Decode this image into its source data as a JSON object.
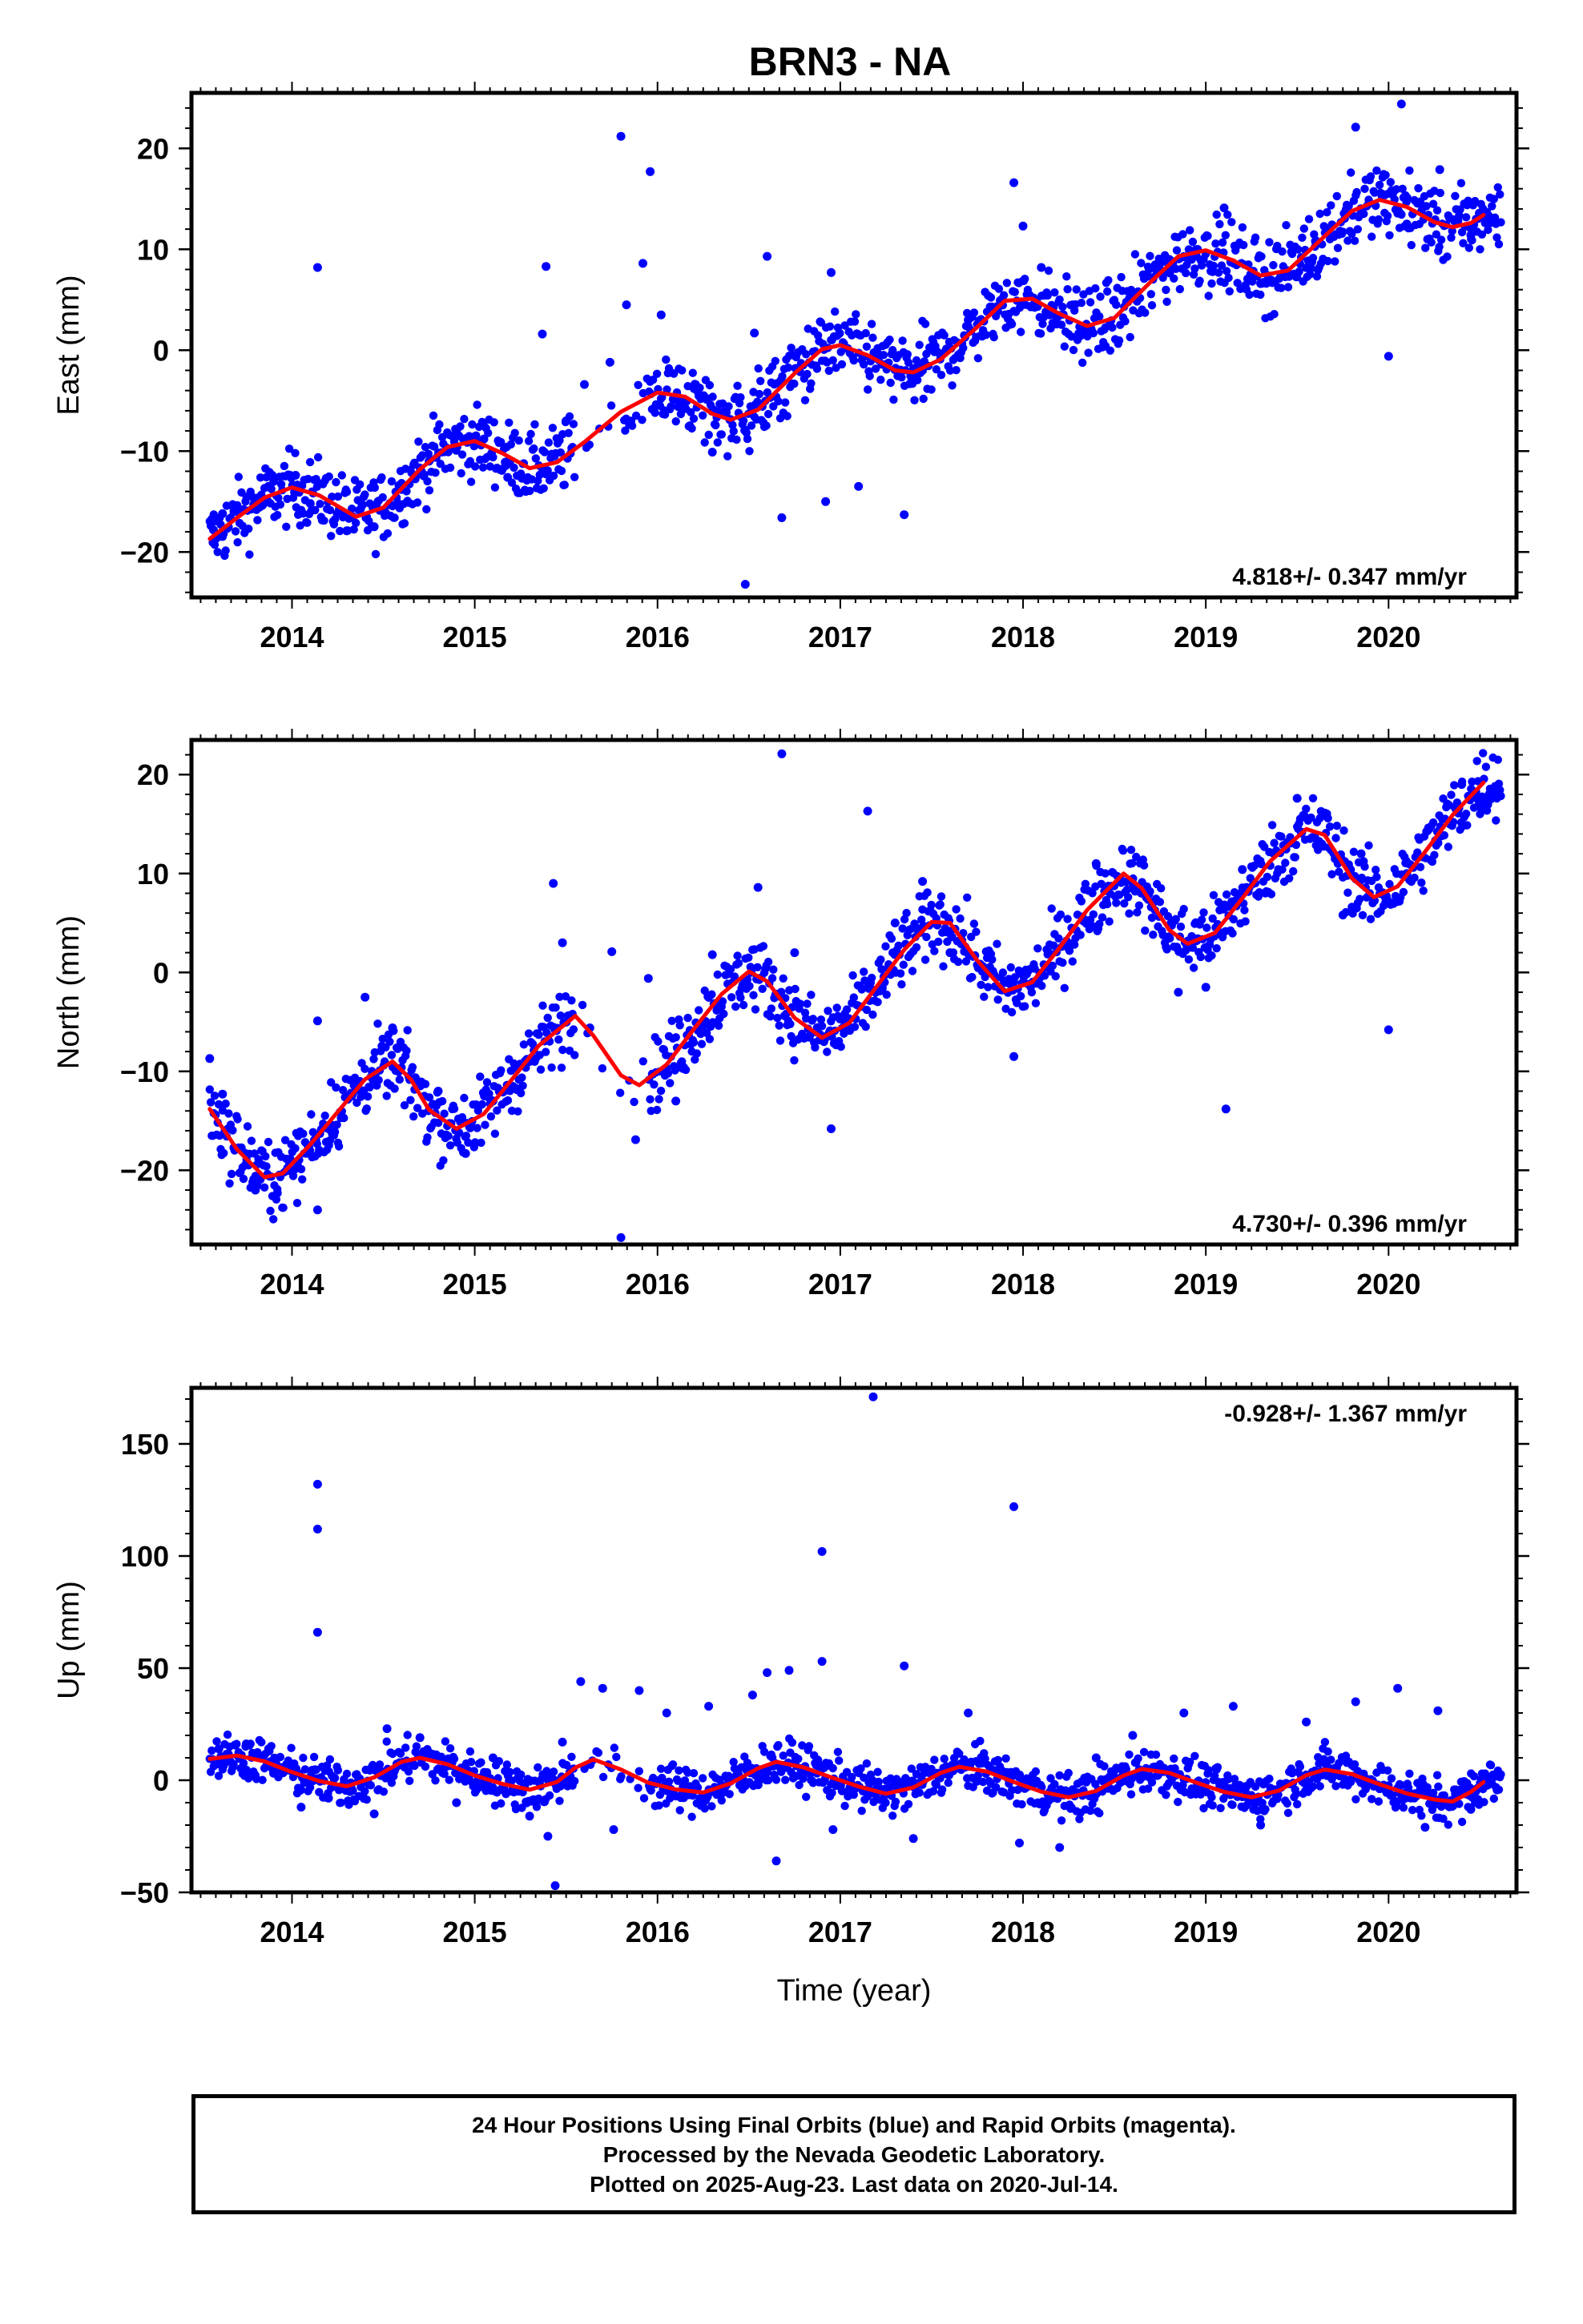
{
  "title": "BRN3 - NA",
  "colors": {
    "points": "#0000ff",
    "fit": "#ff0000",
    "axes": "#000000",
    "background": "#ffffff"
  },
  "footer": {
    "line1": "24 Hour Positions Using Final Orbits (blue) and Rapid Orbits (magenta).",
    "line2": "Processed by the Nevada Geodetic Laboratory.",
    "line3": "Plotted on 2025-Aug-23. Last data on 2020-Jul-14."
  },
  "chart_data": [
    {
      "type": "scatter",
      "id": "east",
      "ylabel": "East (mm)",
      "xlabel": "",
      "xlim": [
        2013.45,
        2020.7
      ],
      "ylim": [
        -24.5,
        25.5
      ],
      "x_ticks": [
        2014,
        2015,
        2016,
        2017,
        2018,
        2019,
        2020
      ],
      "y_ticks": [
        -20,
        -10,
        0,
        10,
        20
      ],
      "y_tick_labels": [
        "−20",
        "−10",
        "0",
        "10",
        "20"
      ],
      "annotation": "4.818+/- 0.347 mm/yr",
      "annotation_position": "bottom-right",
      "fit": [
        [
          2013.55,
          -18.7
        ],
        [
          2013.7,
          -16.6
        ],
        [
          2013.85,
          -14.6
        ],
        [
          2014.0,
          -13.6
        ],
        [
          2014.15,
          -14.4
        ],
        [
          2014.35,
          -16.5
        ],
        [
          2014.5,
          -15.6
        ],
        [
          2014.7,
          -11.8
        ],
        [
          2014.85,
          -9.6
        ],
        [
          2015.0,
          -9.0
        ],
        [
          2015.15,
          -10.2
        ],
        [
          2015.3,
          -11.7
        ],
        [
          2015.45,
          -11.1
        ],
        [
          2015.6,
          -9.1
        ],
        [
          2015.8,
          -6.1
        ],
        [
          2016.0,
          -4.2
        ],
        [
          2016.15,
          -4.6
        ],
        [
          2016.3,
          -6.3
        ],
        [
          2016.4,
          -6.9
        ],
        [
          2016.55,
          -5.9
        ],
        [
          2016.75,
          -2.3
        ],
        [
          2016.9,
          0.1
        ],
        [
          2017.0,
          0.5
        ],
        [
          2017.15,
          -0.5
        ],
        [
          2017.3,
          -2.0
        ],
        [
          2017.4,
          -2.2
        ],
        [
          2017.55,
          -0.9
        ],
        [
          2017.75,
          2.3
        ],
        [
          2017.9,
          4.9
        ],
        [
          2018.05,
          5.1
        ],
        [
          2018.2,
          3.6
        ],
        [
          2018.35,
          2.4
        ],
        [
          2018.5,
          3.2
        ],
        [
          2018.7,
          6.8
        ],
        [
          2018.85,
          9.3
        ],
        [
          2019.0,
          9.9
        ],
        [
          2019.15,
          8.9
        ],
        [
          2019.3,
          7.4
        ],
        [
          2019.45,
          7.9
        ],
        [
          2019.65,
          11.3
        ],
        [
          2019.8,
          13.8
        ],
        [
          2019.95,
          14.9
        ],
        [
          2020.1,
          14.2
        ],
        [
          2020.25,
          12.7
        ],
        [
          2020.35,
          12.2
        ],
        [
          2020.45,
          12.6
        ],
        [
          2020.52,
          13.4
        ]
      ],
      "points": [
        [
          2013.57,
          -17.8
        ],
        [
          2013.62,
          -16.2
        ],
        [
          2013.7,
          -15.4
        ],
        [
          2013.8,
          -14.9
        ],
        [
          2013.9,
          -13.0
        ],
        [
          2014.02,
          -12.4
        ],
        [
          2014.14,
          8.2
        ],
        [
          2014.1,
          -15.2
        ],
        [
          2014.3,
          -17.9
        ],
        [
          2014.45,
          -17.5
        ],
        [
          2014.6,
          -13.8
        ],
        [
          2014.75,
          -11.0
        ],
        [
          2014.9,
          -8.0
        ],
        [
          2015.05,
          -8.8
        ],
        [
          2015.18,
          -12.6
        ],
        [
          2015.37,
          1.6
        ],
        [
          2015.39,
          8.3
        ],
        [
          2015.5,
          -7.0
        ],
        [
          2015.6,
          -3.4
        ],
        [
          2015.74,
          -1.2
        ],
        [
          2015.8,
          21.2
        ],
        [
          2015.83,
          4.5
        ],
        [
          2015.92,
          8.6
        ],
        [
          2015.96,
          17.7
        ],
        [
          2016.02,
          3.5
        ],
        [
          2016.2,
          -3.8
        ],
        [
          2016.3,
          -10.1
        ],
        [
          2016.48,
          -23.2
        ],
        [
          2016.53,
          1.7
        ],
        [
          2016.6,
          9.3
        ],
        [
          2016.68,
          -16.6
        ],
        [
          2016.92,
          -15.0
        ],
        [
          2016.95,
          7.7
        ],
        [
          2017.1,
          -13.5
        ],
        [
          2017.35,
          -16.3
        ],
        [
          2017.45,
          -2.0
        ],
        [
          2017.7,
          3.0
        ],
        [
          2017.95,
          16.6
        ],
        [
          2018.0,
          12.3
        ],
        [
          2018.1,
          8.2
        ],
        [
          2018.45,
          0.4
        ],
        [
          2018.8,
          9.0
        ],
        [
          2019.1,
          14.1
        ],
        [
          2019.3,
          6.6
        ],
        [
          2019.6,
          10.8
        ],
        [
          2019.82,
          22.1
        ],
        [
          2019.98,
          15.4
        ],
        [
          2020.0,
          -0.6
        ],
        [
          2020.07,
          24.4
        ],
        [
          2020.1,
          12.5
        ],
        [
          2020.28,
          17.9
        ],
        [
          2020.45,
          11.4
        ]
      ]
    },
    {
      "type": "scatter",
      "id": "north",
      "ylabel": "North (mm)",
      "xlabel": "",
      "xlim": [
        2013.45,
        2020.7
      ],
      "ylim": [
        -27.5,
        23.5
      ],
      "x_ticks": [
        2014,
        2015,
        2016,
        2017,
        2018,
        2019,
        2020
      ],
      "y_ticks": [
        -20,
        -10,
        0,
        10,
        20
      ],
      "y_tick_labels": [
        "−20",
        "−10",
        "0",
        "10",
        "20"
      ],
      "annotation": "4.730+/- 0.396 mm/yr",
      "annotation_position": "bottom-right",
      "fit": [
        [
          2013.55,
          -13.8
        ],
        [
          2013.7,
          -17.9
        ],
        [
          2013.85,
          -20.7
        ],
        [
          2013.95,
          -20.3
        ],
        [
          2014.1,
          -17.4
        ],
        [
          2014.25,
          -14.1
        ],
        [
          2014.4,
          -10.8
        ],
        [
          2014.55,
          -9.0
        ],
        [
          2014.65,
          -10.8
        ],
        [
          2014.75,
          -13.9
        ],
        [
          2014.9,
          -15.8
        ],
        [
          2015.05,
          -14.3
        ],
        [
          2015.2,
          -10.9
        ],
        [
          2015.35,
          -7.4
        ],
        [
          2015.55,
          -4.4
        ],
        [
          2015.65,
          -6.4
        ],
        [
          2015.8,
          -10.4
        ],
        [
          2015.9,
          -11.4
        ],
        [
          2016.05,
          -9.3
        ],
        [
          2016.2,
          -5.7
        ],
        [
          2016.35,
          -2.2
        ],
        [
          2016.5,
          0.1
        ],
        [
          2016.6,
          -0.9
        ],
        [
          2016.75,
          -4.6
        ],
        [
          2016.9,
          -6.6
        ],
        [
          2017.05,
          -5.1
        ],
        [
          2017.2,
          -1.4
        ],
        [
          2017.35,
          2.3
        ],
        [
          2017.5,
          5.1
        ],
        [
          2017.6,
          5.0
        ],
        [
          2017.75,
          1.2
        ],
        [
          2017.9,
          -1.9
        ],
        [
          2018.05,
          -1.0
        ],
        [
          2018.2,
          2.5
        ],
        [
          2018.35,
          6.3
        ],
        [
          2018.55,
          10.0
        ],
        [
          2018.65,
          8.5
        ],
        [
          2018.8,
          4.3
        ],
        [
          2018.9,
          2.9
        ],
        [
          2019.05,
          4.0
        ],
        [
          2019.2,
          7.5
        ],
        [
          2019.35,
          11.2
        ],
        [
          2019.55,
          14.5
        ],
        [
          2019.65,
          13.9
        ],
        [
          2019.8,
          9.5
        ],
        [
          2019.92,
          7.6
        ],
        [
          2020.05,
          8.7
        ],
        [
          2020.2,
          12.2
        ],
        [
          2020.35,
          15.9
        ],
        [
          2020.52,
          19.2
        ]
      ],
      "points": [
        [
          2013.55,
          -8.7
        ],
        [
          2013.62,
          -12.3
        ],
        [
          2013.8,
          -22.0
        ],
        [
          2013.92,
          -22.3
        ],
        [
          2014.03,
          -19.5
        ],
        [
          2014.14,
          -24.0
        ],
        [
          2014.14,
          -4.9
        ],
        [
          2014.4,
          -2.5
        ],
        [
          2014.55,
          -5.6
        ],
        [
          2014.8,
          -12.0
        ],
        [
          2014.95,
          -18.3
        ],
        [
          2015.1,
          -13.0
        ],
        [
          2015.3,
          -9.0
        ],
        [
          2015.43,
          9.0
        ],
        [
          2015.48,
          3.0
        ],
        [
          2015.63,
          -5.6
        ],
        [
          2015.75,
          2.1
        ],
        [
          2015.8,
          -26.8
        ],
        [
          2015.88,
          -16.9
        ],
        [
          2015.95,
          -0.6
        ],
        [
          2016.1,
          -13.0
        ],
        [
          2016.3,
          1.8
        ],
        [
          2016.55,
          8.6
        ],
        [
          2016.68,
          22.1
        ],
        [
          2016.75,
          2.0
        ],
        [
          2016.95,
          -15.8
        ],
        [
          2017.15,
          16.3
        ],
        [
          2017.3,
          5.0
        ],
        [
          2017.45,
          9.2
        ],
        [
          2017.6,
          2.0
        ],
        [
          2017.95,
          -8.5
        ],
        [
          2018.4,
          11.0
        ],
        [
          2018.6,
          9.0
        ],
        [
          2018.85,
          -2.0
        ],
        [
          2019.0,
          -1.5
        ],
        [
          2019.11,
          -13.8
        ],
        [
          2019.2,
          10.4
        ],
        [
          2019.5,
          17.6
        ],
        [
          2019.75,
          5.8
        ],
        [
          2019.85,
          12.0
        ],
        [
          2020.0,
          -5.8
        ],
        [
          2020.1,
          10.0
        ],
        [
          2020.4,
          19.0
        ],
        [
          2020.5,
          17.0
        ]
      ]
    },
    {
      "type": "scatter",
      "id": "up",
      "ylabel": "Up (mm)",
      "xlabel": "Time (year)",
      "xlim": [
        2013.45,
        2020.7
      ],
      "ylim": [
        -50,
        175
      ],
      "x_ticks": [
        2014,
        2015,
        2016,
        2017,
        2018,
        2019,
        2020
      ],
      "y_ticks": [
        -50,
        0,
        50,
        100,
        150
      ],
      "y_tick_labels": [
        "−50",
        "0",
        "50",
        "100",
        "150"
      ],
      "annotation": "-0.928+/- 1.367 mm/yr",
      "annotation_position": "top-right",
      "fit": [
        [
          2013.55,
          9.5
        ],
        [
          2013.7,
          11.0
        ],
        [
          2013.85,
          8.4
        ],
        [
          2014.0,
          3.6
        ],
        [
          2014.15,
          -0.4
        ],
        [
          2014.3,
          -2.7
        ],
        [
          2014.45,
          1.3
        ],
        [
          2014.6,
          8.2
        ],
        [
          2014.7,
          10.0
        ],
        [
          2014.85,
          7.1
        ],
        [
          2015.0,
          2.1
        ],
        [
          2015.15,
          -1.6
        ],
        [
          2015.3,
          -4.2
        ],
        [
          2015.45,
          -0.8
        ],
        [
          2015.55,
          5.6
        ],
        [
          2015.65,
          9.3
        ],
        [
          2015.8,
          4.8
        ],
        [
          2015.95,
          -1.1
        ],
        [
          2016.1,
          -4.1
        ],
        [
          2016.25,
          -5.5
        ],
        [
          2016.4,
          -1.4
        ],
        [
          2016.55,
          5.3
        ],
        [
          2016.65,
          8.2
        ],
        [
          2016.8,
          5.7
        ],
        [
          2016.95,
          1.3
        ],
        [
          2017.1,
          -2.8
        ],
        [
          2017.25,
          -6.0
        ],
        [
          2017.4,
          -3.2
        ],
        [
          2017.55,
          3.3
        ],
        [
          2017.65,
          6.0
        ],
        [
          2017.8,
          3.9
        ],
        [
          2017.95,
          -0.8
        ],
        [
          2018.1,
          -5.1
        ],
        [
          2018.25,
          -7.6
        ],
        [
          2018.4,
          -4.8
        ],
        [
          2018.55,
          2.1
        ],
        [
          2018.65,
          5.0
        ],
        [
          2018.8,
          3.3
        ],
        [
          2018.95,
          -1.1
        ],
        [
          2019.1,
          -5.2
        ],
        [
          2019.25,
          -7.6
        ],
        [
          2019.4,
          -4.6
        ],
        [
          2019.55,
          2.2
        ],
        [
          2019.65,
          4.8
        ],
        [
          2019.8,
          2.7
        ],
        [
          2019.95,
          -1.8
        ],
        [
          2020.1,
          -5.9
        ],
        [
          2020.25,
          -8.6
        ],
        [
          2020.35,
          -9.5
        ],
        [
          2020.45,
          -5.2
        ],
        [
          2020.52,
          -0.8
        ]
      ],
      "points": [
        [
          2013.6,
          14.0
        ],
        [
          2013.75,
          16.2
        ],
        [
          2013.9,
          5.0
        ],
        [
          2014.05,
          -12.0
        ],
        [
          2014.14,
          132.0
        ],
        [
          2014.14,
          112.0
        ],
        [
          2014.14,
          66.0
        ],
        [
          2014.2,
          -8.0
        ],
        [
          2014.45,
          -15.0
        ],
        [
          2014.52,
          23.0
        ],
        [
          2014.7,
          19.0
        ],
        [
          2014.9,
          -10.0
        ],
        [
          2015.1,
          10.0
        ],
        [
          2015.3,
          -16.0
        ],
        [
          2015.4,
          -25.0
        ],
        [
          2015.44,
          -47.0
        ],
        [
          2015.48,
          17.0
        ],
        [
          2015.58,
          44.0
        ],
        [
          2015.7,
          41.0
        ],
        [
          2015.76,
          -22.0
        ],
        [
          2015.9,
          40.0
        ],
        [
          2016.05,
          30.0
        ],
        [
          2016.28,
          33.0
        ],
        [
          2016.52,
          38.0
        ],
        [
          2016.6,
          48.0
        ],
        [
          2016.65,
          -36.0
        ],
        [
          2016.72,
          49.0
        ],
        [
          2016.9,
          102.0
        ],
        [
          2016.9,
          53.0
        ],
        [
          2016.96,
          -22.0
        ],
        [
          2017.18,
          171.0
        ],
        [
          2017.35,
          51.0
        ],
        [
          2017.4,
          -26.0
        ],
        [
          2017.7,
          30.0
        ],
        [
          2017.95,
          122.0
        ],
        [
          2017.98,
          -28.0
        ],
        [
          2018.2,
          -30.0
        ],
        [
          2018.4,
          10.0
        ],
        [
          2018.6,
          20.0
        ],
        [
          2018.88,
          30.0
        ],
        [
          2019.15,
          33.0
        ],
        [
          2019.3,
          -20.0
        ],
        [
          2019.55,
          26.0
        ],
        [
          2019.82,
          35.0
        ],
        [
          2020.05,
          41.0
        ],
        [
          2020.2,
          -21.0
        ],
        [
          2020.27,
          31.0
        ],
        [
          2020.45,
          -13.0
        ]
      ]
    }
  ]
}
